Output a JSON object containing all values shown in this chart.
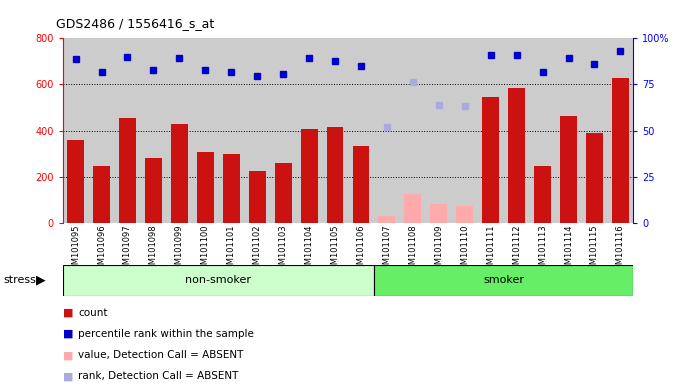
{
  "title": "GDS2486 / 1556416_s_at",
  "samples": [
    "GSM101095",
    "GSM101096",
    "GSM101097",
    "GSM101098",
    "GSM101099",
    "GSM101100",
    "GSM101101",
    "GSM101102",
    "GSM101103",
    "GSM101104",
    "GSM101105",
    "GSM101106",
    "GSM101107",
    "GSM101108",
    "GSM101109",
    "GSM101110",
    "GSM101111",
    "GSM101112",
    "GSM101113",
    "GSM101114",
    "GSM101115",
    "GSM101116"
  ],
  "count_values": [
    360,
    245,
    455,
    280,
    430,
    305,
    300,
    225,
    258,
    405,
    415,
    335,
    null,
    null,
    null,
    null,
    545,
    585,
    248,
    465,
    388,
    630
  ],
  "count_absent": [
    null,
    null,
    null,
    null,
    null,
    null,
    null,
    null,
    null,
    null,
    null,
    null,
    30,
    125,
    80,
    72,
    null,
    null,
    null,
    null,
    null,
    null
  ],
  "percentile_values": [
    710,
    655,
    720,
    665,
    715,
    665,
    655,
    635,
    645,
    715,
    700,
    680,
    null,
    null,
    null,
    null,
    730,
    730,
    655,
    715,
    690,
    745
  ],
  "percentile_absent": [
    null,
    null,
    null,
    null,
    null,
    null,
    null,
    null,
    null,
    null,
    null,
    null,
    415,
    610,
    510,
    505,
    null,
    null,
    null,
    null,
    null,
    null
  ],
  "group_labels": [
    "non-smoker",
    "smoker"
  ],
  "group_ranges": [
    [
      0,
      12
    ],
    [
      12,
      22
    ]
  ],
  "group_colors_light": [
    "#ccffcc",
    "#66ee66"
  ],
  "ylim_left": [
    0,
    800
  ],
  "ylim_right": [
    0,
    100
  ],
  "yticks_left": [
    0,
    200,
    400,
    600,
    800
  ],
  "yticks_right": [
    0,
    25,
    50,
    75,
    100
  ],
  "bar_color_present": "#cc1111",
  "bar_color_absent": "#ffaaaa",
  "dot_color_present": "#0000cc",
  "dot_color_absent": "#aaaadd",
  "bg_color": "#cccccc",
  "stress_label": "stress"
}
